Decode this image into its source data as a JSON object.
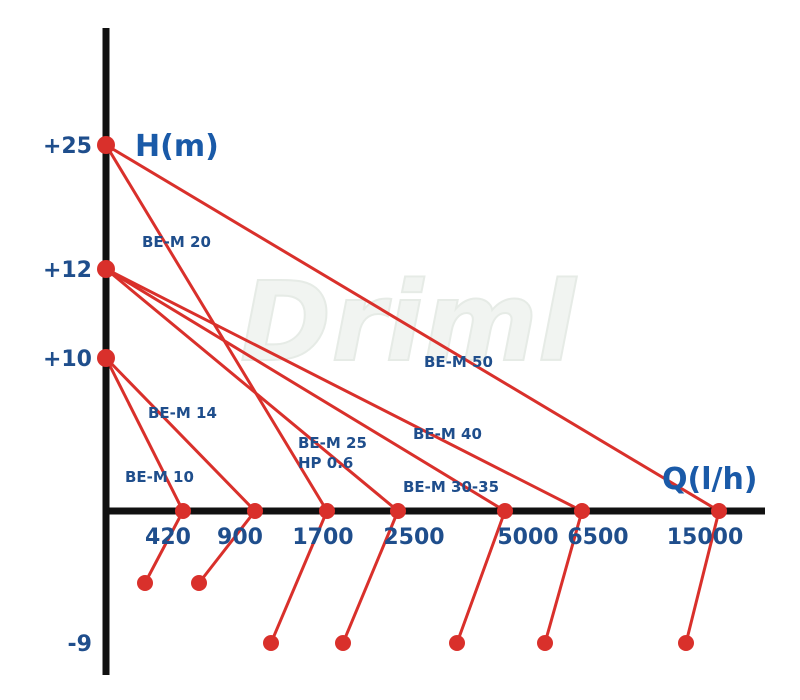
{
  "watermark": "Driml",
  "colors": {
    "axis": "#111111",
    "curve": "#d9302b",
    "text": "#1f4e8c"
  },
  "chart_data": {
    "type": "line",
    "x_axis_title": "Q(l/h)",
    "y_axis_title": "H(m)",
    "y_ticks": [
      {
        "value": 25,
        "label": "+25"
      },
      {
        "value": 12,
        "label": "+12"
      },
      {
        "value": 10,
        "label": "+10"
      },
      {
        "value": -9,
        "label": "-9"
      }
    ],
    "x_ticks": [
      {
        "value": 420,
        "label": "420"
      },
      {
        "value": 900,
        "label": "900"
      },
      {
        "value": 1700,
        "label": "1700"
      },
      {
        "value": 2500,
        "label": "2500"
      },
      {
        "value": 5000,
        "label": "5000"
      },
      {
        "value": 6500,
        "label": "6500"
      },
      {
        "value": 15000,
        "label": "15000"
      }
    ],
    "series": [
      {
        "name": "BE-M 10",
        "lines": [
          "BE-M 10"
        ],
        "head": 10,
        "max_flow": 420,
        "suction_tick": 420
      },
      {
        "name": "BE-M 14",
        "lines": [
          "BE-M 14"
        ],
        "head": 10,
        "max_flow": 900,
        "suction_tick": 900
      },
      {
        "name": "BE-M 20",
        "lines": [
          "BE-M 20"
        ],
        "head": 25,
        "max_flow": 1700,
        "suction_tick": 1700
      },
      {
        "name": "BE-M 25 HP 0.6",
        "lines": [
          "BE-M 25",
          "HP 0.6"
        ],
        "head": 12,
        "max_flow": 2500,
        "suction_tick": 2500
      },
      {
        "name": "BE-M 30-35",
        "lines": [
          "BE-M 30-35"
        ],
        "head": 12,
        "max_flow": 5000,
        "suction_tick": 5000
      },
      {
        "name": "BE-M 40",
        "lines": [
          "BE-M 40"
        ],
        "head": 12,
        "max_flow": 6500,
        "suction_tick": 6500
      },
      {
        "name": "BE-M 50",
        "lines": [
          "BE-M 50"
        ],
        "head": 25,
        "max_flow": 15000,
        "suction_tick": 15000
      }
    ],
    "suction_depth": -9,
    "suction_short_depth": -5
  }
}
